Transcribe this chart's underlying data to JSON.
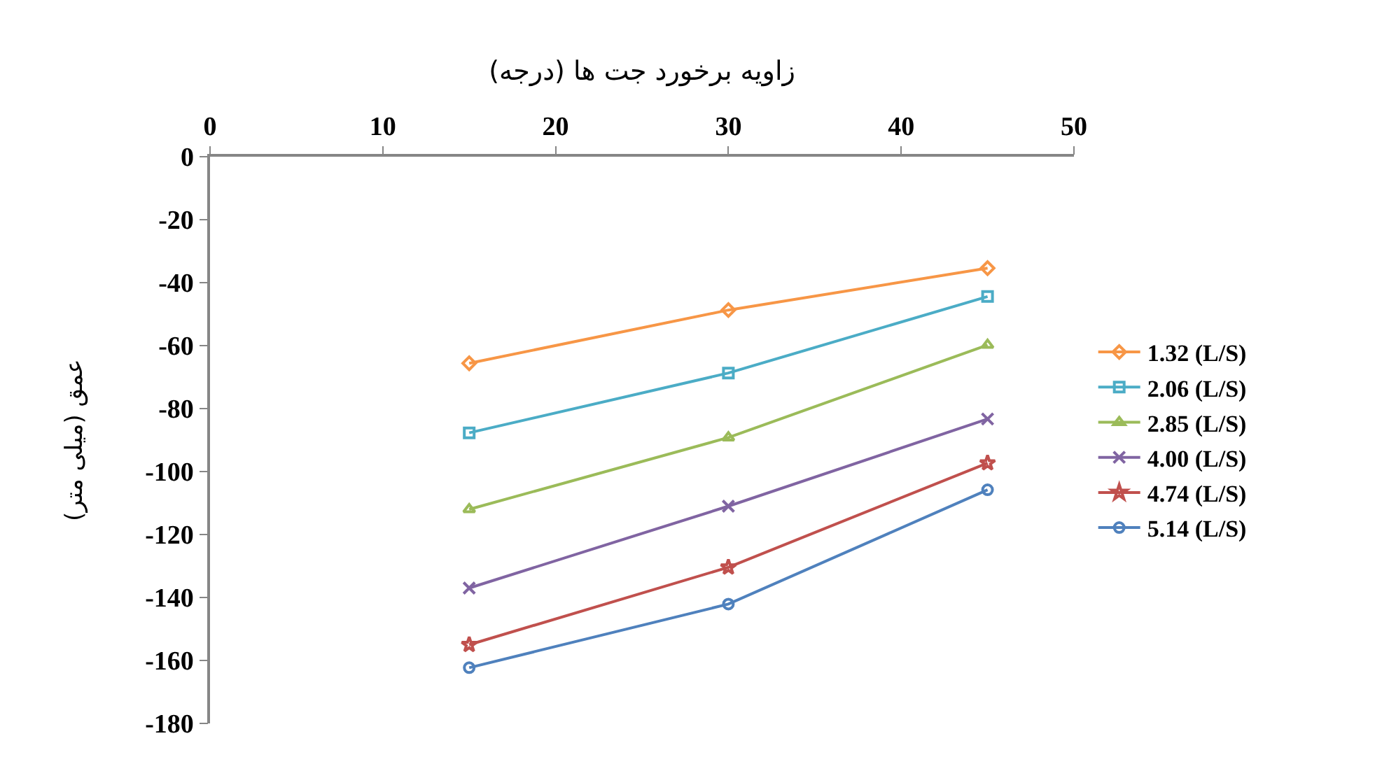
{
  "chart_data": {
    "type": "line",
    "xlabel": "زاویه برخورد جت ها (درجه)",
    "ylabel": "عمق (میلی متر)",
    "x": [
      15,
      30,
      45
    ],
    "xlim": [
      0,
      50
    ],
    "xticks": [
      0,
      10,
      20,
      30,
      40,
      50
    ],
    "ylim": [
      -180,
      0
    ],
    "yticks": [
      -180,
      -160,
      -140,
      -120,
      -100,
      -80,
      -60,
      -40,
      -20,
      0
    ],
    "grid": false,
    "legend": "right",
    "line_style": "solid",
    "series": [
      {
        "name": "1.32 (L/S)",
        "color": "#f79646",
        "marker": "diamond",
        "values": [
          -65.6,
          -48.7,
          -35.4
        ]
      },
      {
        "name": "2.06 (L/S)",
        "color": "#4bacc6",
        "marker": "square",
        "values": [
          -87.7,
          -68.7,
          -44.4
        ]
      },
      {
        "name": "2.85 (L/S)",
        "color": "#9bbb59",
        "marker": "triangle",
        "values": [
          -112,
          -89.2,
          -59.8
        ]
      },
      {
        "name": "4.00 (L/S)",
        "color": "#8064a2",
        "marker": "cross",
        "values": [
          -137,
          -111,
          -83.3
        ]
      },
      {
        "name": "4.74 (L/S)",
        "color": "#c0504d",
        "marker": "star",
        "values": [
          -155,
          -130.4,
          -97.3
        ]
      },
      {
        "name": "5.14 (L/S)",
        "color": "#4f81bd",
        "marker": "circle",
        "values": [
          -162.3,
          -142.1,
          -105.8
        ]
      }
    ]
  }
}
